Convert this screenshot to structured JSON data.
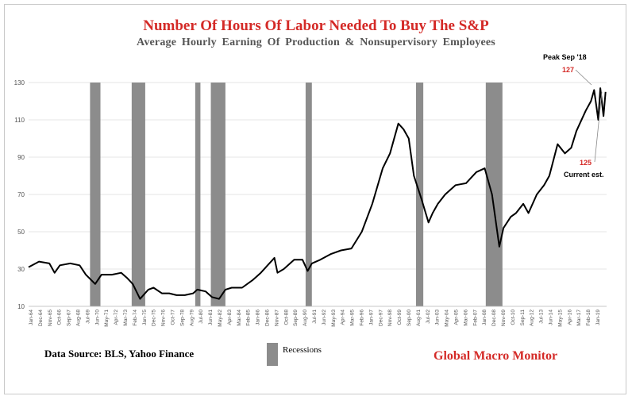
{
  "chart_data": {
    "type": "line",
    "title": "Number Of Hours Of Labor Needed To Buy The S&P",
    "subtitle": "Average Hourly Earning Of Production & Nonsupervisory Employees",
    "ylim": [
      10,
      130
    ],
    "yticks": [
      10,
      30,
      50,
      70,
      90,
      110,
      130
    ],
    "xlim": [
      1964.0,
      2019.5
    ],
    "xticks": [
      "Jan-64",
      "Dec-64",
      "Nov-65",
      "Oct-66",
      "Sep-67",
      "Aug-68",
      "Jul-69",
      "Jun-70",
      "May-71",
      "Apr-72",
      "Mar-73",
      "Feb-74",
      "Jan-75",
      "Dec-75",
      "Nov-76",
      "Oct-77",
      "Sep-78",
      "Aug-79",
      "Jul-80",
      "Jun-81",
      "May-82",
      "Apr-83",
      "Mar-84",
      "Feb-85",
      "Jan-86",
      "Dec-86",
      "Nov-87",
      "Oct-88",
      "Sep-89",
      "Aug-90",
      "Jul-91",
      "Jun-92",
      "May-93",
      "Apr-94",
      "Mar-95",
      "Feb-96",
      "Jan-97",
      "Dec-97",
      "Nov-98",
      "Oct-99",
      "Sep-00",
      "Aug-01",
      "Jul-02",
      "Jun-03",
      "May-04",
      "Apr-05",
      "Mar-06",
      "Feb-07",
      "Jan-08",
      "Dec-08",
      "Nov-09",
      "Oct-10",
      "Sep-11",
      "Aug-12",
      "Jul-13",
      "Jun-14",
      "May-15",
      "Apr-16",
      "Mar-17",
      "Feb-18",
      "Jan-19"
    ],
    "grid": "horizontal",
    "series": [
      {
        "color": "#000000",
        "x": [
          1964.0,
          1965.0,
          1966.0,
          1966.5,
          1967.0,
          1968.0,
          1968.9,
          1969.5,
          1970.4,
          1971.0,
          1972.0,
          1972.9,
          1973.5,
          1974.0,
          1974.7,
          1975.5,
          1976.0,
          1976.8,
          1977.5,
          1978.2,
          1979.0,
          1979.8,
          1980.2,
          1981.0,
          1981.6,
          1982.3,
          1982.9,
          1983.5,
          1984.5,
          1985.5,
          1986.3,
          1987.6,
          1987.9,
          1988.5,
          1989.5,
          1990.3,
          1990.8,
          1991.2,
          1992.0,
          1993.0,
          1994.0,
          1995.0,
          1996.0,
          1997.0,
          1998.0,
          1998.7,
          1999.5,
          2000.0,
          2000.5,
          2001.0,
          2001.7,
          2002.4,
          2002.8,
          2003.3,
          2004.0,
          2005.0,
          2006.0,
          2007.0,
          2007.8,
          2008.5,
          2009.2,
          2009.6,
          2010.3,
          2010.8,
          2011.5,
          2012.0,
          2012.8,
          2013.5,
          2014.0,
          2014.8,
          2015.5,
          2016.1,
          2016.6,
          2017.5,
          2018.0,
          2018.3,
          2018.7,
          2018.9,
          2019.2,
          2019.4
        ],
        "y": [
          31,
          34,
          33,
          28,
          32,
          33,
          32,
          27,
          22,
          27,
          27,
          28,
          25,
          22,
          14,
          19,
          20,
          17,
          17,
          16,
          16,
          17,
          19,
          18,
          15,
          14,
          19,
          20,
          20,
          24,
          28,
          36,
          28,
          30,
          35,
          35,
          29,
          33,
          35,
          38,
          40,
          41,
          50,
          65,
          84,
          92,
          108,
          105,
          100,
          80,
          68,
          55,
          60,
          65,
          70,
          75,
          76,
          82,
          84,
          70,
          42,
          52,
          58,
          60,
          65,
          60,
          70,
          75,
          80,
          97,
          92,
          95,
          104,
          115,
          120,
          126,
          110,
          127,
          112,
          125
        ],
        "peak_label": "Peak Sep '18",
        "peak_value": "127",
        "current_value": "125",
        "current_label": "Current est."
      }
    ],
    "recessions": [
      [
        1969.9,
        1970.9
      ],
      [
        1973.9,
        1975.2
      ],
      [
        1980.0,
        1980.5
      ],
      [
        1981.5,
        1982.9
      ],
      [
        1990.6,
        1991.2
      ],
      [
        2001.2,
        2001.9
      ],
      [
        2007.9,
        2009.5
      ]
    ],
    "legend": {
      "label": "Recessions",
      "color": "#8c8c8c"
    },
    "source": "Data Source:   BLS, Yahoo Finance",
    "brand": "Global Macro Monitor"
  }
}
